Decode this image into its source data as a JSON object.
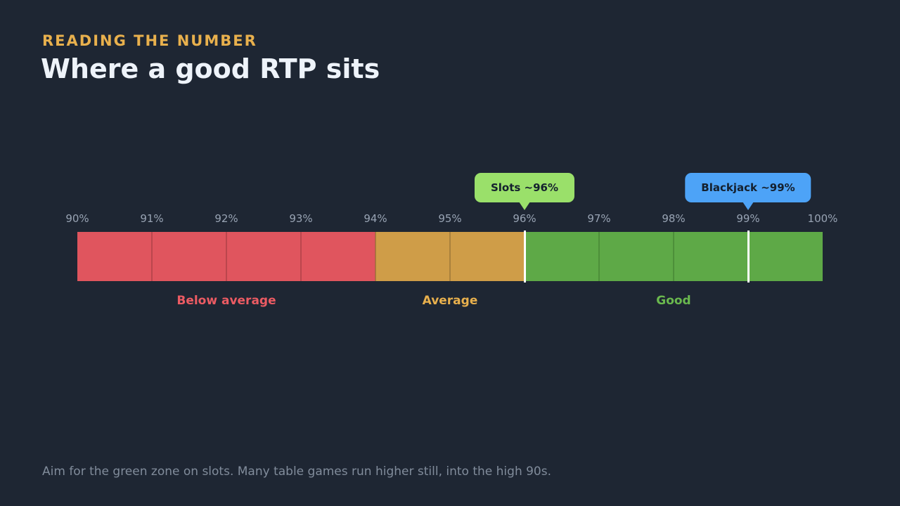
{
  "header": {
    "eyebrow": "READING THE NUMBER",
    "title": "Where a good RTP sits"
  },
  "chart_data": {
    "type": "range-scale",
    "min": 90,
    "max": 100,
    "ticks": [
      {
        "value": 90,
        "label": "90%"
      },
      {
        "value": 91,
        "label": "91%"
      },
      {
        "value": 92,
        "label": "92%"
      },
      {
        "value": 93,
        "label": "93%"
      },
      {
        "value": 94,
        "label": "94%"
      },
      {
        "value": 95,
        "label": "95%"
      },
      {
        "value": 96,
        "label": "96%"
      },
      {
        "value": 97,
        "label": "97%"
      },
      {
        "value": 98,
        "label": "98%"
      },
      {
        "value": 99,
        "label": "99%"
      },
      {
        "value": 100,
        "label": "100%"
      }
    ],
    "zones": [
      {
        "label": "Below average",
        "from": 90,
        "to": 94,
        "color": "#e0555e",
        "label_color": "#ec5b63",
        "divider_color": "#9c3a40"
      },
      {
        "label": "Average",
        "from": 94,
        "to": 96,
        "color": "#cf9d48",
        "label_color": "#e8b04d",
        "divider_color": "#8a6a33"
      },
      {
        "label": "Good",
        "from": 96,
        "to": 100,
        "color": "#5ea947",
        "label_color": "#6ab84e",
        "divider_color": "#3f7a30"
      }
    ],
    "markers": [
      {
        "label": "Slots ~96%",
        "value": 96,
        "color": "#9ae06a"
      },
      {
        "label": "Blackjack ~99%",
        "value": 99,
        "color": "#4da3f7"
      }
    ]
  },
  "footnote": "Aim for the green zone on slots. Many table games run higher still, into the high 90s."
}
